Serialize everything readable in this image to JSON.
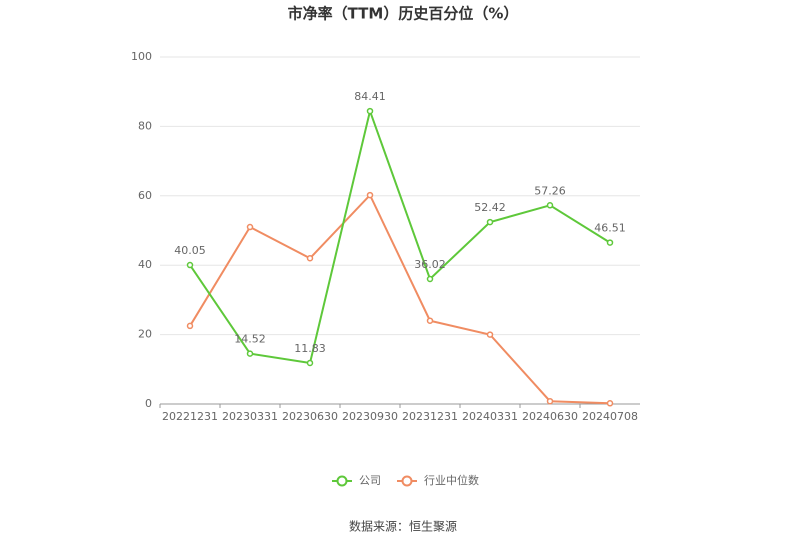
{
  "chart_data": {
    "type": "line",
    "title": "市净率（TTM）历史百分位（%）",
    "categories": [
      "20221231",
      "20230331",
      "20230630",
      "20230930",
      "20231231",
      "20240331",
      "20240630",
      "20240708"
    ],
    "series": [
      {
        "name": "公司",
        "color": "#5ec83a",
        "values": [
          40.05,
          14.52,
          11.83,
          84.41,
          36.02,
          52.42,
          57.26,
          46.51
        ]
      },
      {
        "name": "行业中位数",
        "color": "#f08c62",
        "values": [
          22.5,
          51,
          42,
          60.2,
          24,
          20,
          0.8,
          0.2
        ]
      }
    ],
    "ylim": [
      0,
      100
    ],
    "yticks": [
      0,
      20,
      40,
      60,
      80,
      100
    ],
    "grid": true,
    "source": "数据来源：恒生聚源"
  }
}
